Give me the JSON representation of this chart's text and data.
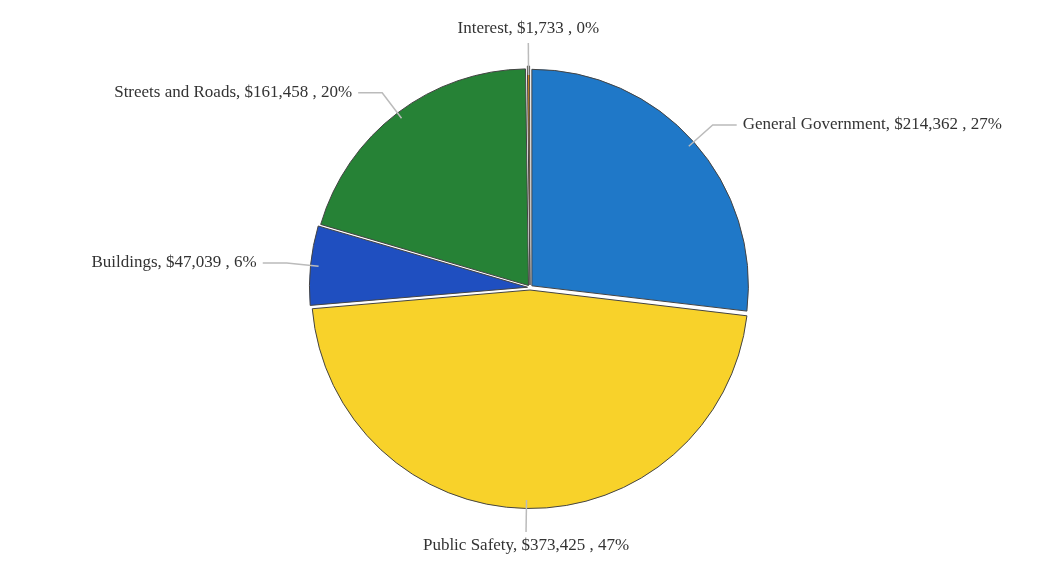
{
  "chart_data": {
    "type": "pie",
    "categories": [
      "General Government",
      "Public Safety",
      "Buildings",
      "Streets and Roads",
      "Interest"
    ],
    "values": [
      214362,
      373425,
      47039,
      161458,
      1733
    ],
    "value_labels": [
      "$214,362 , 27%",
      "$373,425 , 47%",
      "$47,039 , 6%",
      "$161,458 , 20%",
      "$1,733 , 0%"
    ],
    "colors": [
      "#1f78c8",
      "#f8d22a",
      "#1f4fc0",
      "#268236",
      "#c8881e"
    ],
    "legend": false
  }
}
